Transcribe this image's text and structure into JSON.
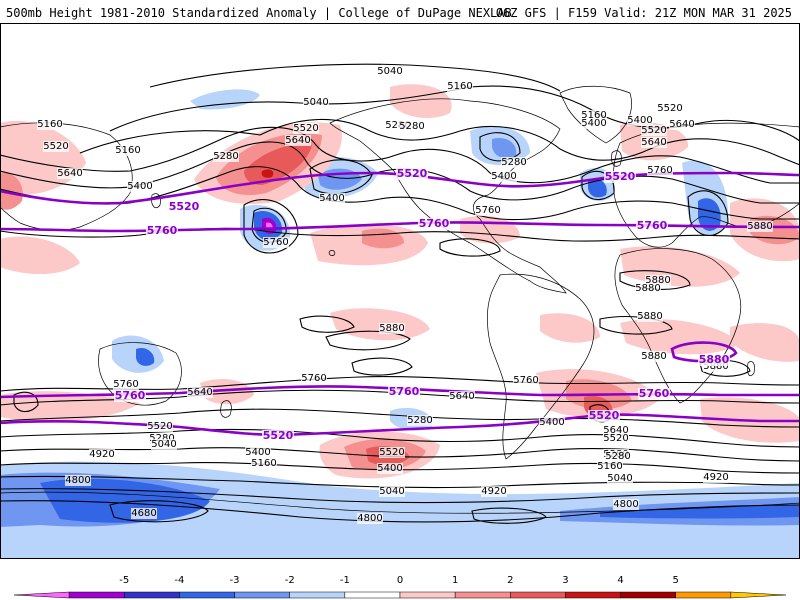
{
  "header": {
    "left": "500mb Height 1981-2010 Standardized Anomaly | College of DuPage NEXLAB",
    "right": "06Z GFS | F159 Valid: 21Z MON MAR 31 2025"
  },
  "colors": {
    "contour": "#000000",
    "key_contour": "#8a00c8",
    "coast": "#000000"
  },
  "colorbar": {
    "ticks": [
      "-5",
      "-4",
      "-3",
      "-2",
      "-1",
      "0",
      "1",
      "2",
      "3",
      "4",
      "5"
    ],
    "colors": [
      "#ff66ff",
      "#a000d0",
      "#3333c8",
      "#3366e6",
      "#6f96f0",
      "#b8d4fa",
      "#ffffff",
      "#fcc8c8",
      "#f49090",
      "#e85a5a",
      "#c81414",
      "#a00000",
      "#ff9900",
      "#ffc800"
    ]
  },
  "map": {
    "key_contour_labels": [
      {
        "text": "5520"
      },
      {
        "text": "5520"
      },
      {
        "text": "5520"
      },
      {
        "text": "5760"
      },
      {
        "text": "5760"
      },
      {
        "text": "5760"
      },
      {
        "text": "5880"
      },
      {
        "text": "5760"
      },
      {
        "text": "5760"
      },
      {
        "text": "5760"
      },
      {
        "text": "5520"
      },
      {
        "text": "5520"
      }
    ],
    "contour_labels": [
      {
        "text": "5040"
      },
      {
        "text": "5160"
      },
      {
        "text": "5040"
      },
      {
        "text": "5280"
      },
      {
        "text": "5160"
      },
      {
        "text": "5400"
      },
      {
        "text": "5520"
      },
      {
        "text": "5640"
      },
      {
        "text": "5520"
      },
      {
        "text": "5640"
      },
      {
        "text": "5160"
      },
      {
        "text": "5280"
      },
      {
        "text": "5400"
      },
      {
        "text": "5760"
      },
      {
        "text": "5400"
      },
      {
        "text": "5280"
      },
      {
        "text": "5400"
      },
      {
        "text": "5520"
      },
      {
        "text": "5640"
      },
      {
        "text": "5760"
      },
      {
        "text": "5160"
      },
      {
        "text": "5280"
      },
      {
        "text": "5400"
      },
      {
        "text": "5520"
      },
      {
        "text": "5640"
      },
      {
        "text": "5760"
      },
      {
        "text": "5880"
      },
      {
        "text": "5880"
      },
      {
        "text": "5880"
      },
      {
        "text": "5880"
      },
      {
        "text": "5880"
      },
      {
        "text": "5880"
      },
      {
        "text": "5880"
      },
      {
        "text": "5760"
      },
      {
        "text": "5640"
      },
      {
        "text": "5760"
      },
      {
        "text": "5640"
      },
      {
        "text": "5760"
      },
      {
        "text": "5520"
      },
      {
        "text": "5280"
      },
      {
        "text": "5040"
      },
      {
        "text": "5400"
      },
      {
        "text": "5160"
      },
      {
        "text": "4920"
      },
      {
        "text": "4800"
      },
      {
        "text": "4680"
      },
      {
        "text": "5520"
      },
      {
        "text": "5400"
      },
      {
        "text": "5280"
      },
      {
        "text": "5040"
      },
      {
        "text": "4920"
      },
      {
        "text": "4800"
      },
      {
        "text": "5400"
      },
      {
        "text": "5280"
      },
      {
        "text": "5640"
      },
      {
        "text": "5520"
      },
      {
        "text": "5280"
      },
      {
        "text": "5160"
      },
      {
        "text": "5040"
      },
      {
        "text": "4920"
      },
      {
        "text": "4800"
      }
    ]
  }
}
